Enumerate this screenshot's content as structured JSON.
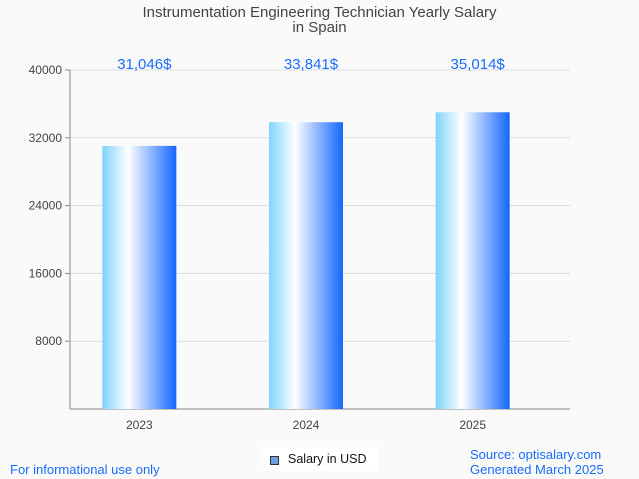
{
  "chart_data": {
    "type": "bar",
    "title": "Instrumentation Engineering Technician Yearly Salary",
    "title_line2": "in Spain",
    "categories": [
      "2023",
      "2024",
      "2025"
    ],
    "values": [
      31046,
      33841,
      35014
    ],
    "data_labels": [
      "31,046$",
      "33,841$",
      "35,014$"
    ],
    "yticks": [
      8000,
      16000,
      24000,
      32000,
      40000
    ],
    "ylim": [
      0,
      40000
    ],
    "xlabel": "",
    "ylabel": "",
    "grid": true,
    "legend": [
      "Salary in USD"
    ],
    "legend_position": "bottom",
    "colors": {
      "bar_left": "#7fd3ff",
      "bar_mid": "#ffffff",
      "bar_right": "#1466ff",
      "label": "#1a6cff"
    }
  },
  "footer": {
    "left": "For informational use only",
    "source": "Source: optisalary.com",
    "generated": "Generated March 2025"
  }
}
